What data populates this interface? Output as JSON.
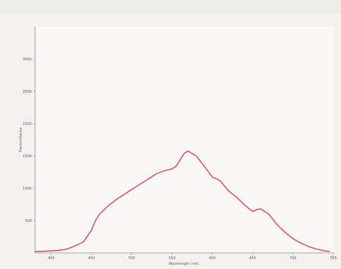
{
  "chart_data": {
    "type": "line",
    "title": "",
    "xlabel": "Wavelength (nm)",
    "ylabel": "Transmittance",
    "xlim": [
      380,
      750
    ],
    "ylim": [
      0,
      3500
    ],
    "x_ticks": [
      400,
      450,
      500,
      550,
      600,
      650,
      700,
      750
    ],
    "y_ticks": [
      500,
      1000,
      1500,
      2000,
      2500,
      3000
    ],
    "grid": false,
    "series": [
      {
        "color": "#e0303a",
        "x": [
          380,
          390,
          400,
          410,
          420,
          430,
          440,
          450,
          455,
          460,
          470,
          480,
          490,
          500,
          510,
          520,
          530,
          540,
          550,
          555,
          560,
          565,
          570,
          580,
          590,
          600,
          605,
          610,
          620,
          630,
          640,
          650,
          655,
          660,
          670,
          680,
          690,
          700,
          710,
          720,
          730,
          740,
          745
        ],
        "y": [
          20,
          25,
          30,
          40,
          60,
          110,
          170,
          350,
          500,
          600,
          720,
          820,
          900,
          980,
          1060,
          1140,
          1220,
          1270,
          1300,
          1340,
          1440,
          1540,
          1575,
          1500,
          1340,
          1170,
          1150,
          1110,
          960,
          860,
          740,
          640,
          670,
          680,
          600,
          440,
          320,
          220,
          150,
          95,
          55,
          30,
          20
        ]
      }
    ]
  }
}
